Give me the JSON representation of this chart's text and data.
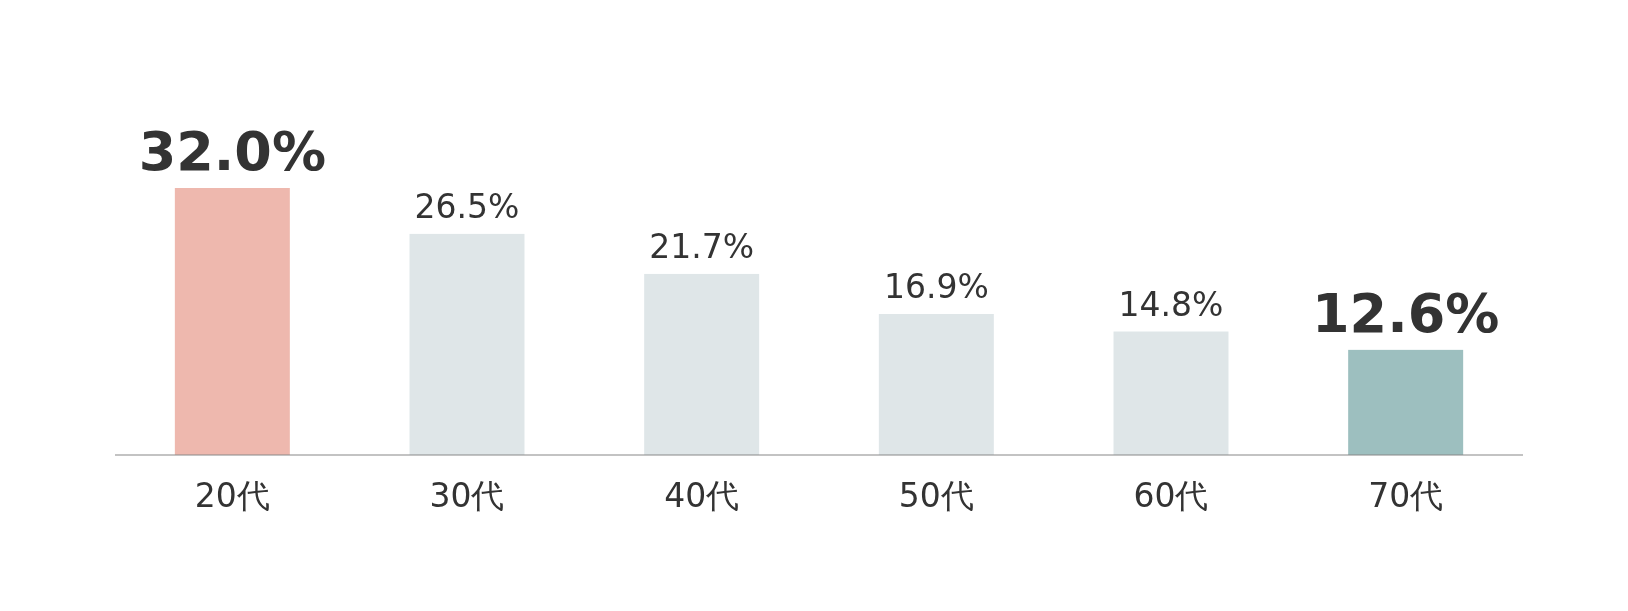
{
  "chart_data": {
    "type": "bar",
    "categories": [
      "20代",
      "30代",
      "40代",
      "50代",
      "60代",
      "70代"
    ],
    "values": [
      32.0,
      26.5,
      21.7,
      16.9,
      14.8,
      12.6
    ],
    "colors": [
      "#eeb8ae",
      "#dfe6e8",
      "#dfe6e8",
      "#dfe6e8",
      "#dfe6e8",
      "#9dbfbf"
    ],
    "value_labels": [
      "32.0%",
      "26.5%",
      "21.7%",
      "16.9%",
      "14.8%",
      "12.6%"
    ]
  }
}
